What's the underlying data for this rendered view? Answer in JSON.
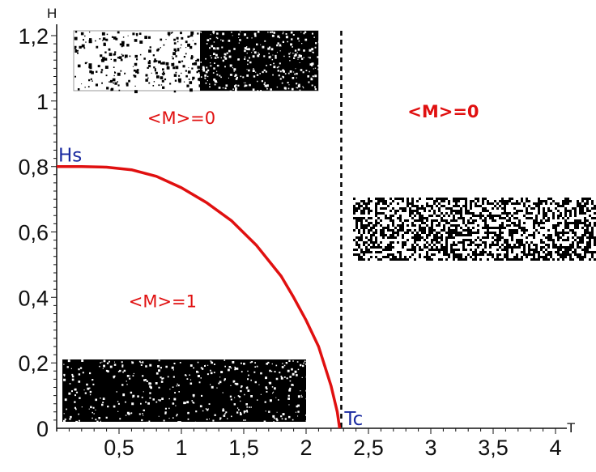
{
  "chart_data": {
    "type": "line",
    "xlabel": "T",
    "ylabel": "H",
    "xlim": [
      0,
      4
    ],
    "ylim": [
      0,
      1.2
    ],
    "x_ticks": [
      "0,5",
      "1",
      "1,5",
      "2",
      "2,5",
      "3",
      "3,5",
      "4"
    ],
    "y_ticks": [
      "0",
      "0,2",
      "0,4",
      "0,6",
      "0,8",
      "1",
      "1,2"
    ],
    "y_tick_values": [
      0,
      0.2,
      0.4,
      0.6,
      0.8,
      1.0,
      1.2
    ],
    "x_tick_values": [
      0.5,
      1,
      1.5,
      2,
      2.5,
      3,
      3.5,
      4
    ],
    "series": [
      {
        "color": "#e01010",
        "x": [
          0.0,
          0.2,
          0.4,
          0.6,
          0.8,
          1.0,
          1.2,
          1.4,
          1.6,
          1.8,
          1.9,
          2.0,
          2.1,
          2.2,
          2.25,
          2.269
        ],
        "y": [
          0.8,
          0.8,
          0.798,
          0.79,
          0.77,
          0.735,
          0.69,
          0.635,
          0.56,
          0.465,
          0.4,
          0.33,
          0.25,
          0.13,
          0.05,
          0.0
        ]
      }
    ],
    "critical_temperature": 2.269,
    "points": [
      {
        "label": "Hs",
        "x": 0,
        "y": 0.8
      },
      {
        "label": "Tc",
        "x": 2.269,
        "y": 0
      }
    ],
    "annotations": [
      {
        "text": "<M>=0",
        "x": 1.0,
        "y": 0.93,
        "style": "normal"
      },
      {
        "text": "<M>=0",
        "x": 3.1,
        "y": 0.95,
        "style": "bold"
      },
      {
        "text": "<M>=1",
        "x": 0.85,
        "y": 0.37,
        "style": "normal"
      }
    ],
    "dashed_line_color": "#000000",
    "label_color": "#1a2aa0",
    "curve_color": "#e01010",
    "region_label_color": "#e01010",
    "insets": [
      {
        "name": "mixed-domains-inset",
        "description": "white left part with black spots, black right part with white specks"
      },
      {
        "name": "disordered-inset",
        "description": "random black/white noise"
      },
      {
        "name": "ordered-inset",
        "description": "black with sparse white specks"
      }
    ]
  }
}
